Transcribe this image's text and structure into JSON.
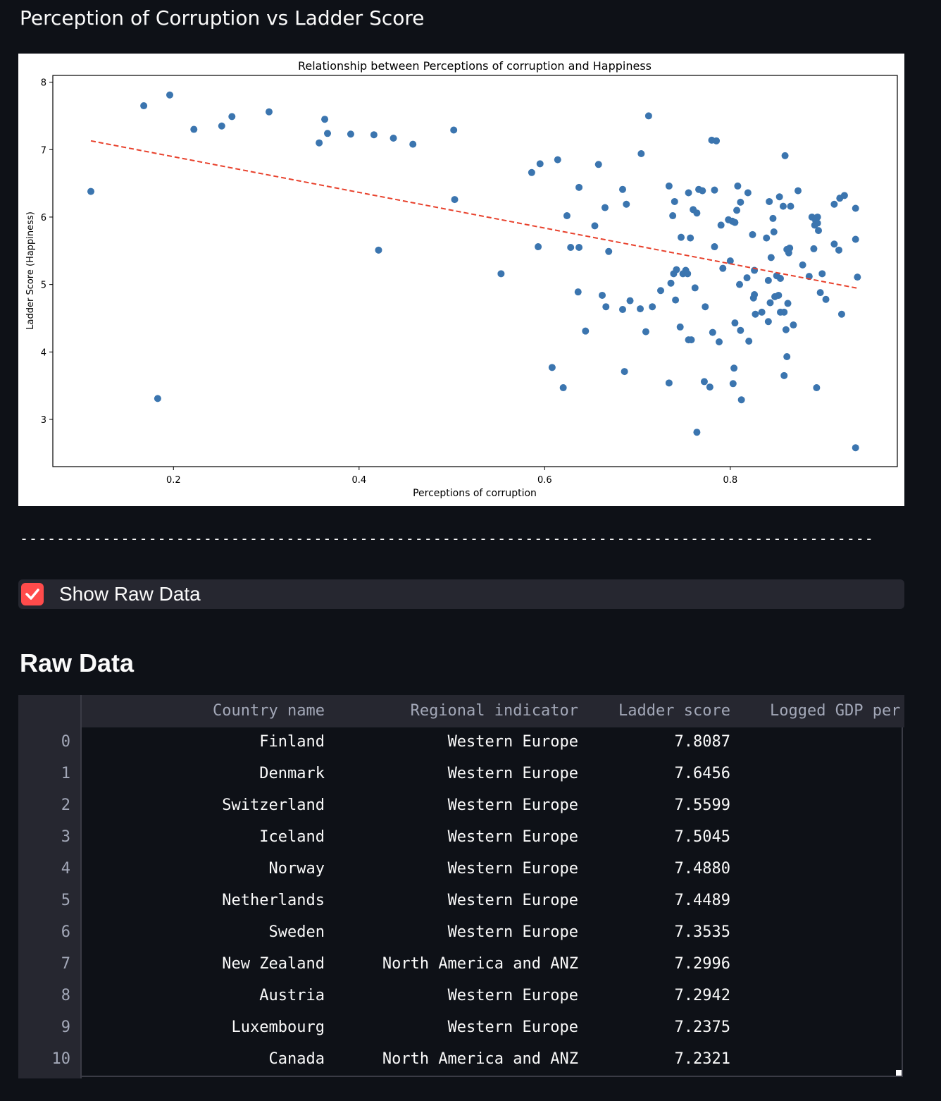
{
  "page": {
    "section_title": "Perception of Corruption vs Ladder Score",
    "divider": "---------------------------------------------------------------------------------------------",
    "checkbox": {
      "label": "Show Raw Data",
      "checked": true
    },
    "raw_title": "Raw Data"
  },
  "colors": {
    "background": "#0e1117",
    "accent": "#ff4b4b",
    "point": "#3b75af",
    "trend": "#e8412c"
  },
  "chart_data": {
    "type": "scatter",
    "title": "Relationship between Perceptions of corruption and Happiness",
    "xlabel": "Perceptions of corruption",
    "ylabel": "Ladder Score (Happiness)",
    "xlim": [
      0.07,
      0.98
    ],
    "ylim": [
      2.3,
      8.1
    ],
    "xticks": [
      0.2,
      0.4,
      0.6,
      0.8
    ],
    "xtick_labels": [
      "0.2",
      "0.4",
      "0.6",
      "0.8"
    ],
    "yticks": [
      3,
      4,
      5,
      6,
      7,
      8
    ],
    "ytick_labels": [
      "3",
      "4",
      "5",
      "6",
      "7",
      "8"
    ],
    "grid": false,
    "trendline": {
      "x": [
        0.111,
        0.939
      ],
      "y": [
        7.13,
        4.94
      ],
      "style": "dashed"
    },
    "points": [
      [
        0.111,
        6.38
      ],
      [
        0.168,
        7.65
      ],
      [
        0.183,
        3.31
      ],
      [
        0.196,
        7.81
      ],
      [
        0.222,
        7.3
      ],
      [
        0.252,
        7.35
      ],
      [
        0.263,
        7.49
      ],
      [
        0.303,
        7.56
      ],
      [
        0.357,
        7.1
      ],
      [
        0.363,
        7.45
      ],
      [
        0.366,
        7.24
      ],
      [
        0.391,
        7.23
      ],
      [
        0.416,
        7.22
      ],
      [
        0.421,
        5.51
      ],
      [
        0.437,
        7.17
      ],
      [
        0.458,
        7.08
      ],
      [
        0.502,
        7.29
      ],
      [
        0.503,
        6.26
      ],
      [
        0.553,
        5.16
      ],
      [
        0.586,
        6.66
      ],
      [
        0.593,
        5.56
      ],
      [
        0.595,
        6.79
      ],
      [
        0.608,
        3.77
      ],
      [
        0.614,
        6.85
      ],
      [
        0.62,
        3.47
      ],
      [
        0.624,
        6.02
      ],
      [
        0.628,
        5.55
      ],
      [
        0.636,
        4.89
      ],
      [
        0.637,
        5.55
      ],
      [
        0.637,
        6.44
      ],
      [
        0.644,
        4.31
      ],
      [
        0.654,
        5.87
      ],
      [
        0.658,
        6.78
      ],
      [
        0.662,
        4.84
      ],
      [
        0.665,
        6.14
      ],
      [
        0.666,
        4.67
      ],
      [
        0.669,
        5.49
      ],
      [
        0.684,
        6.41
      ],
      [
        0.684,
        4.63
      ],
      [
        0.686,
        3.71
      ],
      [
        0.688,
        6.19
      ],
      [
        0.692,
        4.76
      ],
      [
        0.703,
        4.64
      ],
      [
        0.704,
        6.94
      ],
      [
        0.709,
        4.3
      ],
      [
        0.712,
        7.5
      ],
      [
        0.716,
        4.67
      ],
      [
        0.725,
        4.91
      ],
      [
        0.734,
        6.46
      ],
      [
        0.734,
        3.54
      ],
      [
        0.736,
        5.02
      ],
      [
        0.738,
        6.02
      ],
      [
        0.739,
        5.16
      ],
      [
        0.74,
        6.23
      ],
      [
        0.741,
        4.77
      ],
      [
        0.742,
        5.22
      ],
      [
        0.746,
        4.37
      ],
      [
        0.747,
        5.7
      ],
      [
        0.749,
        5.16
      ],
      [
        0.752,
        5.21
      ],
      [
        0.754,
        5.16
      ],
      [
        0.755,
        6.36
      ],
      [
        0.755,
        4.18
      ],
      [
        0.757,
        5.69
      ],
      [
        0.758,
        4.18
      ],
      [
        0.76,
        6.11
      ],
      [
        0.762,
        4.95
      ],
      [
        0.764,
        6.06
      ],
      [
        0.764,
        2.81
      ],
      [
        0.766,
        6.41
      ],
      [
        0.77,
        6.39
      ],
      [
        0.772,
        3.56
      ],
      [
        0.773,
        4.67
      ],
      [
        0.778,
        3.48
      ],
      [
        0.78,
        7.14
      ],
      [
        0.781,
        4.29
      ],
      [
        0.783,
        6.4
      ],
      [
        0.783,
        5.56
      ],
      [
        0.785,
        7.13
      ],
      [
        0.788,
        4.15
      ],
      [
        0.79,
        5.88
      ],
      [
        0.792,
        5.24
      ],
      [
        0.798,
        5.96
      ],
      [
        0.8,
        5.35
      ],
      [
        0.802,
        5.94
      ],
      [
        0.803,
        3.53
      ],
      [
        0.804,
        3.76
      ],
      [
        0.805,
        5.92
      ],
      [
        0.805,
        4.43
      ],
      [
        0.807,
        6.1
      ],
      [
        0.808,
        6.46
      ],
      [
        0.81,
        5.0
      ],
      [
        0.811,
        4.32
      ],
      [
        0.811,
        6.22
      ],
      [
        0.812,
        3.29
      ],
      [
        0.818,
        5.1
      ],
      [
        0.819,
        6.36
      ],
      [
        0.82,
        4.16
      ],
      [
        0.824,
        5.74
      ],
      [
        0.825,
        4.8
      ],
      [
        0.826,
        4.85
      ],
      [
        0.826,
        5.21
      ],
      [
        0.827,
        4.56
      ],
      [
        0.834,
        4.59
      ],
      [
        0.839,
        5.69
      ],
      [
        0.841,
        5.06
      ],
      [
        0.841,
        4.45
      ],
      [
        0.842,
        6.23
      ],
      [
        0.843,
        4.73
      ],
      [
        0.844,
        5.4
      ],
      [
        0.846,
        5.98
      ],
      [
        0.847,
        5.78
      ],
      [
        0.848,
        4.82
      ],
      [
        0.85,
        5.13
      ],
      [
        0.852,
        4.84
      ],
      [
        0.853,
        6.3
      ],
      [
        0.854,
        5.09
      ],
      [
        0.854,
        4.59
      ],
      [
        0.857,
        6.16
      ],
      [
        0.858,
        4.59
      ],
      [
        0.858,
        3.65
      ],
      [
        0.859,
        6.91
      ],
      [
        0.86,
        4.33
      ],
      [
        0.861,
        5.52
      ],
      [
        0.861,
        3.93
      ],
      [
        0.862,
        4.72
      ],
      [
        0.863,
        5.47
      ],
      [
        0.864,
        5.54
      ],
      [
        0.865,
        6.16
      ],
      [
        0.868,
        4.4
      ],
      [
        0.873,
        6.39
      ],
      [
        0.878,
        5.29
      ],
      [
        0.885,
        5.12
      ],
      [
        0.888,
        6.0
      ],
      [
        0.89,
        5.53
      ],
      [
        0.891,
        5.88
      ],
      [
        0.892,
        5.95
      ],
      [
        0.893,
        3.47
      ],
      [
        0.894,
        5.91
      ],
      [
        0.894,
        6.0
      ],
      [
        0.895,
        5.8
      ],
      [
        0.897,
        4.88
      ],
      [
        0.899,
        5.16
      ],
      [
        0.903,
        4.78
      ],
      [
        0.912,
        6.19
      ],
      [
        0.912,
        5.6
      ],
      [
        0.917,
        5.51
      ],
      [
        0.918,
        6.28
      ],
      [
        0.92,
        4.56
      ],
      [
        0.923,
        6.32
      ],
      [
        0.935,
        2.58
      ],
      [
        0.935,
        6.13
      ],
      [
        0.935,
        5.67
      ],
      [
        0.937,
        5.11
      ]
    ]
  },
  "table": {
    "columns": [
      "Country name",
      "Regional indicator",
      "Ladder score",
      "Logged GDP per"
    ],
    "rows": [
      {
        "idx": "0",
        "country": "Finland",
        "region": "Western Europe",
        "score": "7.8087"
      },
      {
        "idx": "1",
        "country": "Denmark",
        "region": "Western Europe",
        "score": "7.6456"
      },
      {
        "idx": "2",
        "country": "Switzerland",
        "region": "Western Europe",
        "score": "7.5599"
      },
      {
        "idx": "3",
        "country": "Iceland",
        "region": "Western Europe",
        "score": "7.5045"
      },
      {
        "idx": "4",
        "country": "Norway",
        "region": "Western Europe",
        "score": "7.4880"
      },
      {
        "idx": "5",
        "country": "Netherlands",
        "region": "Western Europe",
        "score": "7.4489"
      },
      {
        "idx": "6",
        "country": "Sweden",
        "region": "Western Europe",
        "score": "7.3535"
      },
      {
        "idx": "7",
        "country": "New Zealand",
        "region": "North America and ANZ",
        "score": "7.2996"
      },
      {
        "idx": "8",
        "country": "Austria",
        "region": "Western Europe",
        "score": "7.2942"
      },
      {
        "idx": "9",
        "country": "Luxembourg",
        "region": "Western Europe",
        "score": "7.2375"
      },
      {
        "idx": "10",
        "country": "Canada",
        "region": "North America and ANZ",
        "score": "7.2321"
      }
    ]
  }
}
